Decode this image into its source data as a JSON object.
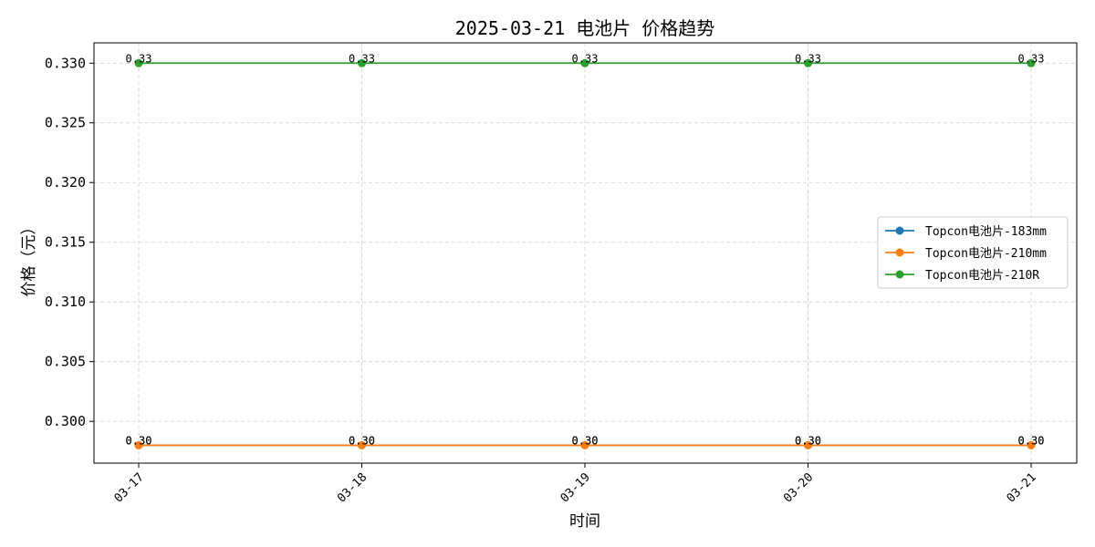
{
  "chart_data": {
    "type": "line",
    "title": "2025-03-21 电池片 价格趋势",
    "xlabel": "时间",
    "ylabel": "价格（元）",
    "categories": [
      "03-17",
      "03-18",
      "03-19",
      "03-20",
      "03-21"
    ],
    "ylim": [
      0.2965,
      0.3317
    ],
    "yticks": [
      0.3,
      0.305,
      0.31,
      0.315,
      0.32,
      0.325,
      0.33
    ],
    "ytick_labels": [
      "0.300",
      "0.305",
      "0.310",
      "0.315",
      "0.320",
      "0.325",
      "0.330"
    ],
    "grid": true,
    "legend_position": "center-right",
    "series": [
      {
        "name": "Topcon电池片-183mm",
        "color": "#1f77b4",
        "values": [
          0.298,
          0.298,
          0.298,
          0.298,
          0.298
        ],
        "labels": [
          "0.30",
          "0.30",
          "0.30",
          "0.30",
          "0.30"
        ]
      },
      {
        "name": "Topcon电池片-210mm",
        "color": "#ff7f0e",
        "values": [
          0.298,
          0.298,
          0.298,
          0.298,
          0.298
        ],
        "labels": [
          "0.30",
          "0.30",
          "0.30",
          "0.30",
          "0.30"
        ]
      },
      {
        "name": "Topcon电池片-210R",
        "color": "#2ca02c",
        "values": [
          0.33,
          0.33,
          0.33,
          0.33,
          0.33
        ],
        "labels": [
          "0.33",
          "0.33",
          "0.33",
          "0.33",
          "0.33"
        ]
      }
    ]
  }
}
